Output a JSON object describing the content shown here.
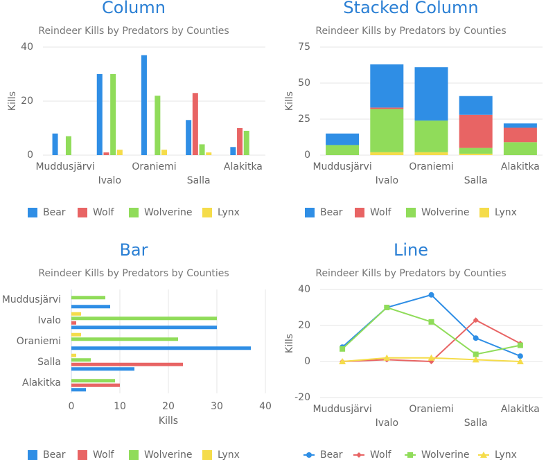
{
  "chart_data": [
    {
      "type": "column",
      "title": "Column",
      "subtitle": "Reindeer Kills by Predators by Counties",
      "y_label": "Kills",
      "categories": [
        "Muddusjärvi",
        "Ivalo",
        "Oraniemi",
        "Salla",
        "Alakitka"
      ],
      "series": [
        {
          "name": "Bear",
          "color": "#2f8ee5",
          "values": [
            8,
            30,
            37,
            13,
            3
          ]
        },
        {
          "name": "Wolf",
          "color": "#e86464",
          "values": [
            0,
            1,
            0,
            23,
            10
          ]
        },
        {
          "name": "Wolverine",
          "color": "#90dc5a",
          "values": [
            7,
            30,
            22,
            4,
            9
          ]
        },
        {
          "name": "Lynx",
          "color": "#f5dc4a",
          "values": [
            0,
            2,
            2,
            1,
            0
          ]
        }
      ],
      "ylim": [
        0,
        40
      ],
      "yticks": [
        0,
        20,
        40
      ],
      "grid": true
    },
    {
      "type": "stacked-column",
      "title": "Stacked Column",
      "subtitle": "Reindeer Kills by Predators by Counties",
      "y_label": "Kills",
      "categories": [
        "Muddusjärvi",
        "Ivalo",
        "Oraniemi",
        "Salla",
        "Alakitka"
      ],
      "series": [
        {
          "name": "Bear",
          "color": "#2f8ee5",
          "values": [
            8,
            30,
            37,
            13,
            3
          ]
        },
        {
          "name": "Wolf",
          "color": "#e86464",
          "values": [
            0,
            1,
            0,
            23,
            10
          ]
        },
        {
          "name": "Wolverine",
          "color": "#90dc5a",
          "values": [
            7,
            30,
            22,
            4,
            9
          ]
        },
        {
          "name": "Lynx",
          "color": "#f5dc4a",
          "values": [
            0,
            2,
            2,
            1,
            0
          ]
        }
      ],
      "ylim": [
        0,
        75
      ],
      "yticks": [
        0,
        25,
        50,
        75
      ],
      "grid": true
    },
    {
      "type": "bar",
      "title": "Bar",
      "subtitle": "Reindeer Kills by Predators by Counties",
      "x_label": "Kills",
      "categories": [
        "Muddusjärvi",
        "Ivalo",
        "Oraniemi",
        "Salla",
        "Alakitka"
      ],
      "series": [
        {
          "name": "Bear",
          "color": "#2f8ee5",
          "values": [
            8,
            30,
            37,
            13,
            3
          ]
        },
        {
          "name": "Wolf",
          "color": "#e86464",
          "values": [
            0,
            1,
            0,
            23,
            10
          ]
        },
        {
          "name": "Wolverine",
          "color": "#90dc5a",
          "values": [
            7,
            30,
            22,
            4,
            9
          ]
        },
        {
          "name": "Lynx",
          "color": "#f5dc4a",
          "values": [
            0,
            2,
            2,
            1,
            0
          ]
        }
      ],
      "xlim": [
        0,
        40
      ],
      "xticks": [
        0,
        10,
        20,
        30,
        40
      ],
      "grid": true
    },
    {
      "type": "line",
      "title": "Line",
      "subtitle": "Reindeer Kills by Predators by Counties",
      "y_label": "Kills",
      "categories": [
        "Muddusjärvi",
        "Ivalo",
        "Oraniemi",
        "Salla",
        "Alakitka"
      ],
      "series": [
        {
          "name": "Bear",
          "color": "#2f8ee5",
          "values": [
            8,
            30,
            37,
            13,
            3
          ]
        },
        {
          "name": "Wolf",
          "color": "#e86464",
          "values": [
            0,
            1,
            0,
            23,
            10
          ]
        },
        {
          "name": "Wolverine",
          "color": "#90dc5a",
          "values": [
            7,
            30,
            22,
            4,
            9
          ]
        },
        {
          "name": "Lynx",
          "color": "#f5dc4a",
          "values": [
            0,
            2,
            2,
            1,
            0
          ]
        }
      ],
      "ylim": [
        -20,
        40
      ],
      "yticks": [
        -20,
        0,
        20,
        40
      ],
      "grid": true
    }
  ]
}
